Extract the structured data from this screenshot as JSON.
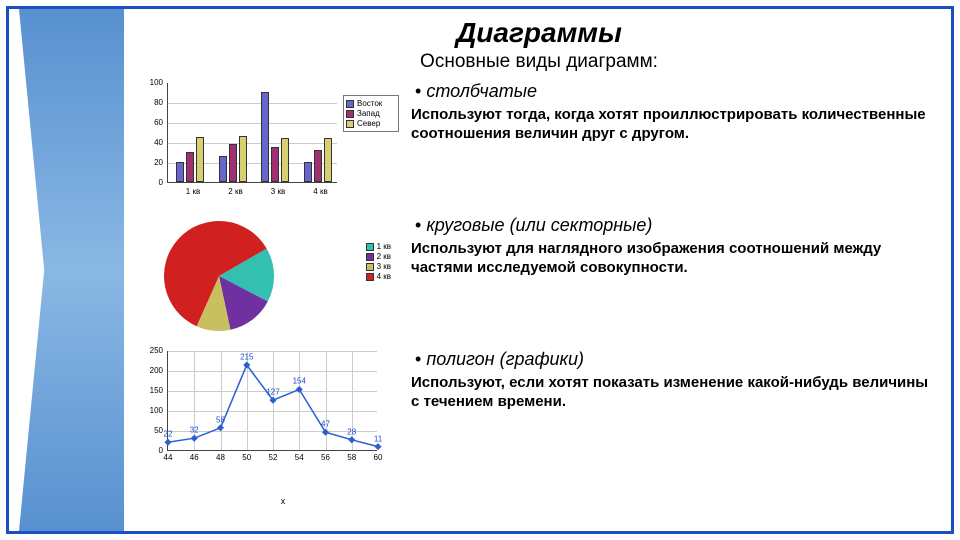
{
  "title": "Диаграммы",
  "subtitle": "Основные виды диаграмм:",
  "types": {
    "bar": {
      "heading": "столбчатые",
      "desc": "Используют тогда, когда хотят проиллюстрировать количественные соотношения величин друг с другом.",
      "chart": {
        "type": "bar-grouped",
        "ylim": [
          0,
          100
        ],
        "ytick_step": 20,
        "categories": [
          "1 кв",
          "2 кв",
          "3 кв",
          "4 кв"
        ],
        "series": [
          {
            "name": "Восток",
            "color": "#6666cc",
            "values": [
              20,
              26,
              90,
              20
            ]
          },
          {
            "name": "Запад",
            "color": "#a03070",
            "values": [
              30,
              38,
              35,
              32
            ]
          },
          {
            "name": "Север",
            "color": "#d8d070",
            "values": [
              45,
              46,
              44,
              44
            ]
          }
        ],
        "grid_color": "#cccccc",
        "axis_color": "#444444",
        "background": "#ffffff"
      }
    },
    "pie": {
      "heading": "круговые (или секторные)",
      "desc": "Используют для наглядного изображения соотношений между частями исследуемой совокупности.",
      "chart": {
        "type": "pie",
        "slices": [
          {
            "label": "1 кв",
            "value": 16,
            "color": "#33c0b0"
          },
          {
            "label": "2 кв",
            "value": 14,
            "color": "#7030a0"
          },
          {
            "label": "3 кв",
            "value": 10,
            "color": "#c8c060"
          },
          {
            "label": "4 кв",
            "value": 60,
            "color": "#d02020"
          }
        ],
        "start_angle_deg": -30,
        "background": "#ffffff"
      }
    },
    "line": {
      "heading": "полигон (графики)",
      "desc": "Используют, если хотят показать изменение какой-нибудь величины с течением времени.",
      "chart": {
        "type": "line",
        "x": [
          44,
          46,
          48,
          50,
          52,
          54,
          56,
          58,
          60
        ],
        "y": [
          22,
          32,
          58,
          215,
          127,
          154,
          47,
          28,
          11
        ],
        "xlim": [
          44,
          60
        ],
        "xtick_step": 2,
        "ylim": [
          0,
          250
        ],
        "ytick_step": 50,
        "xlabel": "x",
        "line_color": "#2a5fd0",
        "marker": "diamond",
        "marker_size": 5,
        "marker_color": "#2a5fd0",
        "grid_color": "#cccccc",
        "axis_color": "#444444",
        "show_point_labels": true
      }
    }
  }
}
